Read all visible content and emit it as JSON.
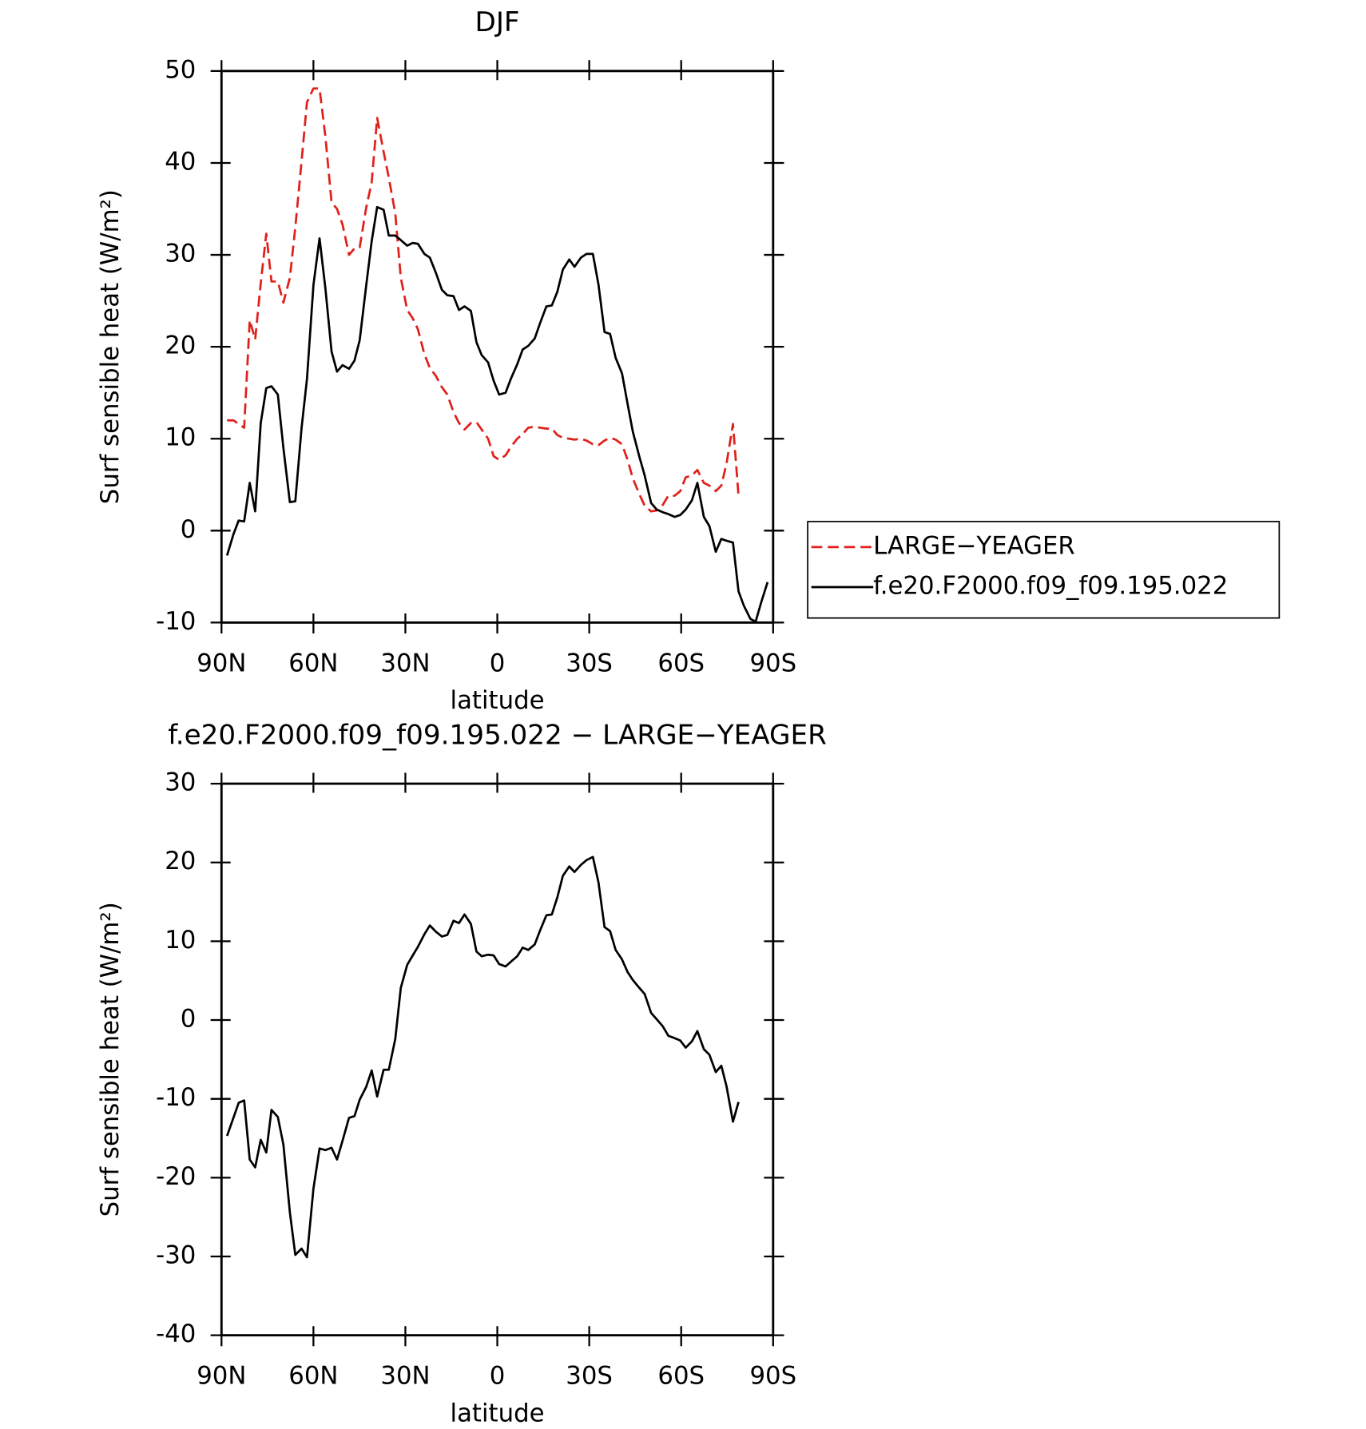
{
  "chart_data": [
    {
      "type": "line",
      "title": "DJF",
      "xlabel": "latitude",
      "ylabel": "Surf sensible heat (W/m²)",
      "xlim": [
        90,
        -90
      ],
      "ylim": [
        -10,
        50
      ],
      "xticks": [
        {
          "value": 90,
          "label": "90N"
        },
        {
          "value": 60,
          "label": "60N"
        },
        {
          "value": 30,
          "label": "30N"
        },
        0,
        {
          "value": -30,
          "label": "30S"
        },
        {
          "value": -60,
          "label": "60S"
        },
        {
          "value": -90,
          "label": "90S"
        }
      ],
      "yticks": [
        -10,
        0,
        10,
        20,
        30,
        40,
        50
      ],
      "legend": "right",
      "x": [
        88.2,
        86.1,
        84.4,
        82.6,
        80.8,
        79.0,
        77.2,
        75.4,
        73.7,
        71.6,
        69.8,
        67.7,
        65.9,
        63.9,
        62.1,
        60.0,
        58.0,
        56.1,
        54.1,
        52.3,
        50.5,
        48.4,
        46.6,
        44.9,
        42.8,
        41.0,
        39.2,
        37.1,
        35.4,
        33.3,
        31.5,
        29.4,
        27.6,
        25.9,
        23.8,
        22.0,
        20.0,
        18.1,
        16.3,
        14.3,
        12.5,
        10.7,
        8.6,
        6.8,
        5.1,
        3.0,
        1.2,
        -0.6,
        -2.7,
        -4.4,
        -6.5,
        -8.3,
        -10.1,
        -12.2,
        -14.0,
        -16.0,
        -17.8,
        -19.6,
        -21.4,
        -23.5,
        -25.2,
        -27.3,
        -29.1,
        -31.2,
        -33.0,
        -35.0,
        -36.8,
        -38.6,
        -40.7,
        -42.5,
        -44.2,
        -46.3,
        -48.1,
        -50.2,
        -52.0,
        -54.0,
        -55.8,
        -57.9,
        -59.7,
        -61.5,
        -63.5,
        -65.3,
        -67.4,
        -69.2,
        -71.3,
        -73.1,
        -74.8,
        -76.9,
        -78.7,
        -80.5,
        -82.6,
        -84.3,
        -86.1,
        -88.2
      ],
      "series": [
        {
          "name": "LARGE−YEAGER",
          "color": "#e0201b",
          "style": "dashed",
          "values": [
            12.0,
            12.0,
            11.6,
            11.2,
            22.9,
            20.8,
            26.9,
            32.3,
            27.1,
            27.1,
            24.8,
            27.5,
            33.0,
            40.1,
            46.6,
            48.1,
            48.1,
            42.9,
            35.7,
            35.0,
            33.3,
            30.0,
            30.7,
            30.8,
            35.1,
            37.9,
            44.9,
            41.2,
            38.4,
            34.5,
            27.5,
            24.0,
            23.1,
            21.9,
            19.2,
            17.7,
            16.8,
            15.6,
            14.8,
            12.9,
            11.7,
            11.0,
            11.7,
            11.8,
            11.0,
            10.0,
            8.1,
            7.7,
            8.2,
            9.1,
            10.0,
            10.5,
            11.2,
            11.3,
            11.2,
            11.1,
            11.1,
            10.4,
            10.1,
            10.0,
            9.9,
            10.0,
            9.8,
            9.4,
            9.3,
            9.8,
            10.1,
            9.9,
            9.4,
            7.7,
            5.7,
            4.0,
            2.7,
            2.1,
            2.2,
            2.8,
            3.8,
            3.8,
            4.3,
            5.8,
            6.0,
            6.6,
            5.2,
            4.9,
            4.3,
            4.9,
            7.3,
            11.6,
            3.8,
            null,
            null,
            null,
            null,
            null
          ]
        },
        {
          "name": "f.e20.F2000.f09_f09.195.022",
          "color": "#000000",
          "style": "solid",
          "values": [
            -2.7,
            -0.4,
            1.1,
            1.0,
            5.2,
            2.1,
            11.7,
            15.5,
            15.7,
            14.8,
            9.0,
            3.1,
            3.2,
            11.1,
            16.5,
            26.7,
            31.8,
            26.4,
            19.5,
            17.3,
            18.0,
            17.6,
            18.5,
            20.7,
            26.6,
            31.5,
            35.2,
            34.9,
            32.1,
            32.1,
            31.6,
            31.0,
            31.3,
            31.2,
            30.1,
            29.7,
            28.0,
            26.2,
            25.6,
            25.5,
            24.0,
            24.4,
            23.9,
            20.5,
            19.1,
            18.3,
            16.3,
            14.8,
            15.0,
            16.5,
            18.1,
            19.7,
            20.1,
            20.9,
            22.6,
            24.4,
            24.5,
            26.0,
            28.4,
            29.5,
            28.7,
            29.7,
            30.1,
            30.1,
            26.8,
            21.6,
            21.4,
            18.8,
            17.1,
            13.8,
            10.8,
            8.1,
            6.0,
            3.0,
            2.3,
            2.0,
            1.8,
            1.5,
            1.7,
            2.3,
            3.3,
            5.2,
            1.5,
            0.5,
            -2.3,
            -0.9,
            -1.1,
            -1.3,
            -6.6,
            -8.2,
            -9.6,
            -9.9,
            -7.8,
            -5.6
          ]
        }
      ]
    },
    {
      "type": "line",
      "title": "f.e20.F2000.f09_f09.195.022 − LARGE−YEAGER",
      "xlabel": "latitude",
      "ylabel": "Surf sensible heat (W/m²)",
      "xlim": [
        90,
        -90
      ],
      "ylim": [
        -40,
        30
      ],
      "xticks": [
        {
          "value": 90,
          "label": "90N"
        },
        {
          "value": 60,
          "label": "60N"
        },
        {
          "value": 30,
          "label": "30N"
        },
        0,
        {
          "value": -30,
          "label": "30S"
        },
        {
          "value": -60,
          "label": "60S"
        },
        {
          "value": -90,
          "label": "90S"
        }
      ],
      "yticks": [
        -40,
        -30,
        -20,
        -10,
        0,
        10,
        20,
        30
      ],
      "x": [
        88.2,
        86.1,
        84.4,
        82.6,
        80.8,
        79.0,
        77.2,
        75.4,
        73.7,
        71.6,
        69.8,
        67.7,
        65.9,
        63.9,
        62.1,
        60.0,
        58.0,
        56.1,
        54.1,
        52.3,
        50.5,
        48.4,
        46.6,
        44.9,
        42.8,
        41.0,
        39.2,
        37.1,
        35.4,
        33.3,
        31.5,
        29.4,
        27.6,
        25.9,
        23.8,
        22.0,
        20.0,
        18.1,
        16.3,
        14.3,
        12.5,
        10.7,
        8.6,
        6.8,
        5.1,
        3.0,
        1.2,
        -0.6,
        -2.7,
        -4.4,
        -6.5,
        -8.3,
        -10.1,
        -12.2,
        -14.0,
        -16.0,
        -17.8,
        -19.6,
        -21.4,
        -23.5,
        -25.2,
        -27.3,
        -29.1,
        -31.2,
        -33.0,
        -35.0,
        -36.8,
        -38.6,
        -40.7,
        -42.5,
        -44.2,
        -46.3,
        -48.1,
        -50.2,
        -52.0,
        -54.0,
        -55.8,
        -57.9,
        -59.7,
        -61.5,
        -63.5,
        -65.3,
        -67.4,
        -69.2,
        -71.3,
        -73.1,
        -74.8,
        -76.9,
        -78.7,
        -80.5,
        -82.6,
        -84.3,
        -86.1,
        -88.2
      ],
      "color": "#000000",
      "values": [
        -14.7,
        -12.4,
        -10.5,
        -10.2,
        -17.7,
        -18.7,
        -15.2,
        -16.8,
        -11.4,
        -12.3,
        -15.8,
        -24.4,
        -29.8,
        -29.0,
        -30.1,
        -21.4,
        -16.3,
        -16.5,
        -16.2,
        -17.7,
        -15.3,
        -12.4,
        -12.2,
        -10.1,
        -8.5,
        -6.4,
        -9.7,
        -6.3,
        -6.3,
        -2.4,
        4.1,
        7.0,
        8.2,
        9.3,
        10.9,
        12.0,
        11.2,
        10.6,
        10.8,
        12.6,
        12.3,
        13.4,
        12.2,
        8.7,
        8.1,
        8.3,
        8.2,
        7.1,
        6.8,
        7.4,
        8.1,
        9.2,
        8.9,
        9.6,
        11.4,
        13.3,
        13.4,
        15.6,
        18.3,
        19.5,
        18.8,
        19.7,
        20.3,
        20.7,
        17.5,
        11.8,
        11.3,
        8.9,
        7.7,
        6.1,
        5.1,
        4.1,
        3.3,
        0.9,
        0.1,
        -0.8,
        -2.0,
        -2.3,
        -2.6,
        -3.5,
        -2.7,
        -1.4,
        -3.7,
        -4.4,
        -6.6,
        -5.8,
        -8.4,
        -12.9,
        -10.4,
        null,
        null,
        null,
        null,
        null
      ]
    }
  ]
}
